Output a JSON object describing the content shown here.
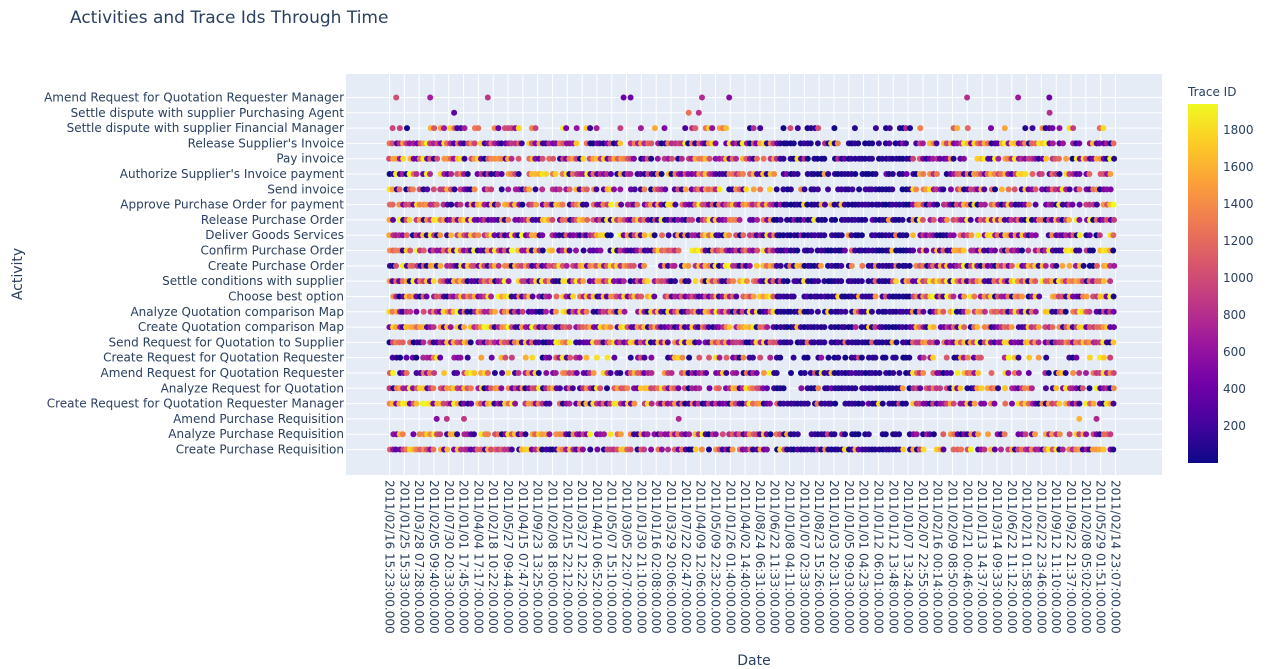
{
  "chart_data": {
    "type": "scatter",
    "title": "Activities and Trace Ids Through Time",
    "xlabel": "Date",
    "ylabel": "Activity",
    "colorbar_title": "Trace ID",
    "colorbar_ticks": [
      200,
      400,
      600,
      800,
      1000,
      1200,
      1400,
      1600,
      1800
    ],
    "colorbar_range": [
      1,
      1940
    ],
    "colorscale": [
      "#0d0887",
      "#46039f",
      "#7201a8",
      "#9c179e",
      "#bd3786",
      "#d8576b",
      "#ed7953",
      "#fb9f3a",
      "#fdca26",
      "#f0f921"
    ],
    "plot_background": "#e5ecf6",
    "grid": true,
    "x_tick_labels": [
      "2011/02/16 15:23:00.000",
      "2011/01/25 15:33:00.000",
      "2011/03/28 07:28:00.000",
      "2011/02/05 09:40:00.000",
      "2011/07/30 20:33:00.000",
      "2011/01/01 17:45:00.000",
      "2011/04/04 17:17:00.000",
      "2011/02/18 10:22:00.000",
      "2011/05/27 09:44:00.000",
      "2011/04/15 07:47:00.000",
      "2011/09/23 13:25:00.000",
      "2011/02/08 18:00:00.000",
      "2011/02/15 22:12:00.000",
      "2011/03/27 12:22:00.000",
      "2011/04/10 06:52:00.000",
      "2011/05/07 15:10:00.000",
      "2011/03/05 22:07:00.000",
      "2011/01/30 21:10:00.000",
      "2011/01/16 02:08:00.000",
      "2011/03/29 20:06:00.000",
      "2011/07/22 02:47:00.000",
      "2011/04/09 12:06:00.000",
      "2011/05/09 22:32:00.000",
      "2011/01/26 01:40:00.000",
      "2011/04/02 14:40:00.000",
      "2011/08/24 06:31:00.000",
      "2011/06/22 11:33:00.000",
      "2011/01/08 04:11:00.000",
      "2011/01/07 02:33:00.000",
      "2011/08/23 15:26:00.000",
      "2011/01/03 20:31:00.000",
      "2011/01/05 09:03:00.000",
      "2011/01/01 04:23:00.000",
      "2011/01/12 06:01:00.000",
      "2011/01/12 13:48:00.000",
      "2011/01/07 13:24:00.000",
      "2011/02/07 22:55:00.000",
      "2011/02/16 00:14:00.000",
      "2011/02/09 08:50:00.000",
      "2011/01/21 00:46:00.000",
      "2011/01/13 14:37:00.000",
      "2011/03/14 09:33:00.000",
      "2011/06/22 11:12:00.000",
      "2011/02/11 01:58:00.000",
      "2011/02/22 23:46:00.000",
      "2011/09/12 11:10:00.000",
      "2011/09/22 21:37:00.000",
      "2011/02/08 05:02:00.000",
      "2011/05/29 01:51:00.000",
      "2011/02/14 23:07:00.000"
    ],
    "activities": [
      "Create Purchase Requisition",
      "Analyze Purchase Requisition",
      "Amend Purchase Requisition",
      "Create Request for Quotation Requester Manager",
      "Analyze Request for Quotation",
      "Amend Request for Quotation Requester",
      "Create Request for Quotation Requester",
      "Send Request for Quotation to Supplier",
      "Create Quotation comparison Map",
      "Analyze Quotation comparison Map",
      "Choose best option",
      "Settle conditions with supplier",
      "Create Purchase Order",
      "Confirm Purchase Order",
      "Deliver Goods Services",
      "Release Purchase Order",
      "Approve Purchase Order for payment",
      "Send invoice",
      "Authorize Supplier's Invoice payment",
      "Pay invoice",
      "Release Supplier's Invoice",
      "Settle dispute with supplier Financial Manager",
      "Settle dispute with supplier Purchasing Agent",
      "Amend Request for Quotation Requester Manager"
    ],
    "row_density": [
      0.88,
      0.72,
      0.02,
      0.82,
      0.84,
      0.7,
      0.5,
      0.9,
      0.9,
      0.88,
      0.9,
      0.9,
      0.88,
      0.88,
      0.88,
      0.88,
      0.88,
      0.72,
      0.86,
      0.88,
      0.88,
      0.35,
      0.03,
      0.05
    ]
  }
}
